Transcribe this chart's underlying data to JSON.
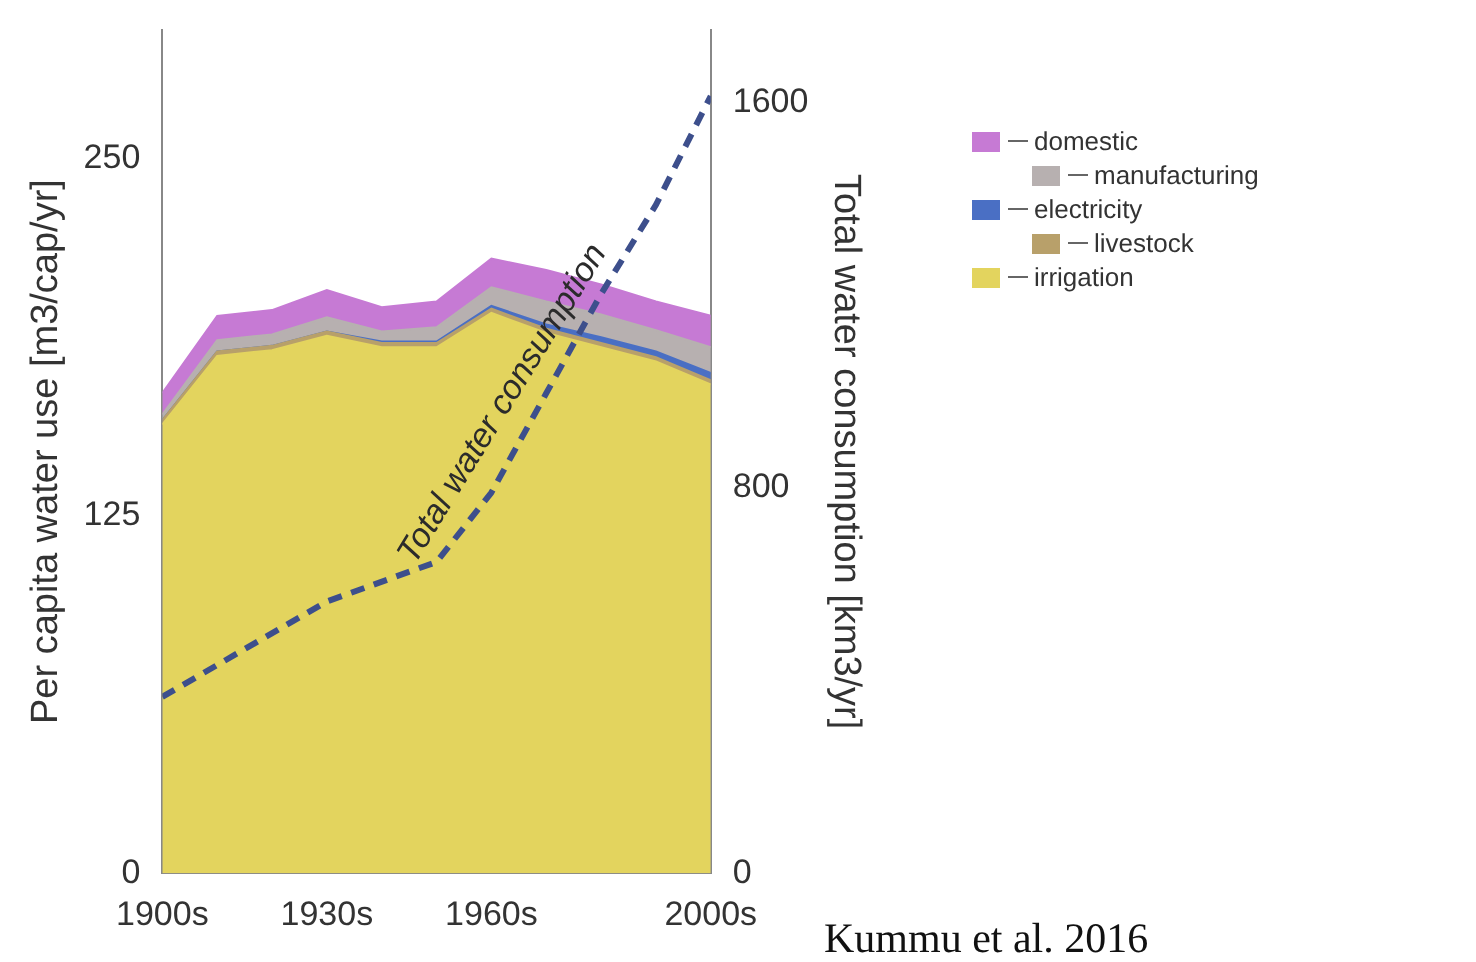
{
  "chart_data": {
    "type": "area",
    "stacked": true,
    "xlabel": null,
    "ylabel": "Per capita water use [m3/cap/yr]",
    "y2label": "Total water consumption [km3/yr]",
    "x": [
      1900,
      1910,
      1920,
      1930,
      1940,
      1950,
      1960,
      1970,
      1980,
      1990,
      2000
    ],
    "xlim": [
      1900,
      2000
    ],
    "xticks": [
      {
        "value": 1900,
        "label": "1900s"
      },
      {
        "value": 1930,
        "label": "1930s"
      },
      {
        "value": 1960,
        "label": "1960s"
      },
      {
        "value": 2000,
        "label": "2000s"
      }
    ],
    "ylim": [
      0,
      295
    ],
    "yticks": [
      0,
      125,
      250
    ],
    "y2lim": [
      0,
      1750
    ],
    "y2ticks": [
      0,
      800,
      1600
    ],
    "series": [
      {
        "name": "irrigation",
        "color": "#e3d45e",
        "values": [
          157,
          181,
          183,
          188,
          184,
          184,
          196,
          189,
          184,
          179,
          171
        ]
      },
      {
        "name": "livestock",
        "color": "#b8a06a",
        "values": [
          1.5,
          1.5,
          1.5,
          1.5,
          1.5,
          1.5,
          1.5,
          1.5,
          1.5,
          1.5,
          1.5
        ]
      },
      {
        "name": "electricity",
        "color": "#4a6fc4",
        "values": [
          0,
          0,
          0,
          0,
          0.5,
          0.5,
          1,
          1.5,
          2,
          2,
          2.5
        ]
      },
      {
        "name": "manufacturing",
        "color": "#b7b0b0",
        "values": [
          2,
          4,
          4,
          5,
          3.5,
          5,
          6.5,
          8,
          8,
          7.5,
          9
        ]
      },
      {
        "name": "domestic",
        "color": "#c67ad4",
        "values": [
          7.5,
          8.5,
          8.5,
          9.5,
          8.5,
          9,
          10,
          11,
          10.5,
          10,
          11
        ]
      },
      {
        "type": "line",
        "axis": "y2",
        "color": "#3d4f8c",
        "line_style": "dashed",
        "x": [
          1900,
          1930,
          1950,
          1960,
          1970,
          1980,
          1990,
          2000
        ],
        "values": [
          366,
          564,
          646,
          790,
          996,
          1202,
          1387,
          1613
        ]
      }
    ],
    "grid": false,
    "legend": "top right",
    "annotations": [
      "Total water consumption",
      "Kummu et al. 2016"
    ]
  }
}
